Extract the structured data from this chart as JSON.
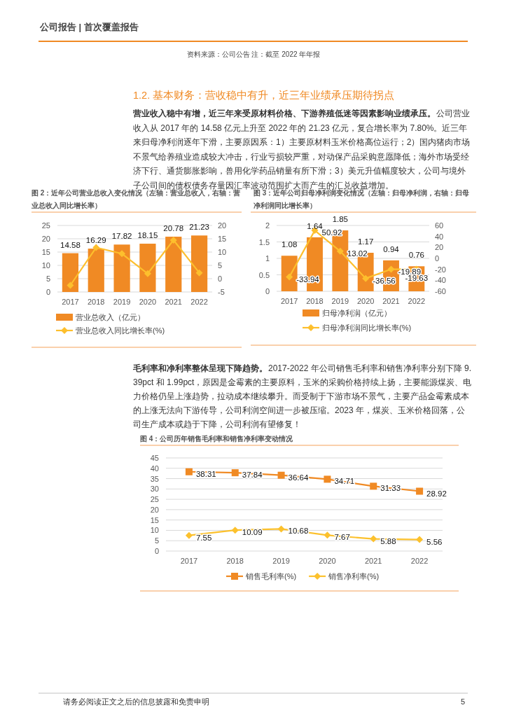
{
  "chart_data": [
    {
      "type": "bar",
      "title": "图 2：近年公司营业总收入变化情况（左轴：营业总收入，右轴：营业总收入同比增长率）",
      "categories": [
        "2017",
        "2018",
        "2019",
        "2020",
        "2021",
        "2022"
      ],
      "series": [
        {
          "name": "营业总收入（亿元）",
          "color": "#f08a24",
          "values": [
            14.58,
            16.29,
            17.82,
            18.15,
            20.78,
            21.23
          ],
          "value_labels": [
            "14.58",
            "16.29",
            "17.82",
            "18.15",
            "20.78",
            "21.23"
          ]
        },
        {
          "name": "营业总收入同比增长率(%)",
          "type": "line",
          "axis": "y2",
          "color": "#fdbf2d",
          "marker": "diamond",
          "values": [
            -2.5,
            11.7,
            9.4,
            1.9,
            14.5,
            2.2
          ]
        }
      ],
      "ylim": [
        0,
        25
      ],
      "yticks": [
        0,
        5,
        10,
        15,
        20,
        25
      ],
      "y2lim": [
        -5,
        20
      ],
      "y2ticks": [
        -5,
        0,
        5,
        10,
        15,
        20
      ],
      "grid": "y",
      "legend": "bottom",
      "annotations": [
        "公司报告 | 首次覆盖报告",
        "资料来源：公司公告 注：截至 2022 年年报",
        "1.2. 基本财务：营收稳中有升，近三年业绩承压期待拐点",
        "营业收入稳中有增，近三年来受原材料价格、下游养殖低迷等因素影响业绩承压。",
        "公司营业收入从 2017 年的 14.58 亿元上升至 2022 年的 21.23 亿元，复合增长率为 7.80%。近三年来归母净利润逐年下滑，主要原因系：1）主要原材料玉米价格高位运行；2）国内猪肉市场不景气给养殖业造成较大冲击，行业亏损较严重，对动保产品采购意愿降低；海外市场受经济下行、通货膨胀影响，兽用化学药品销量有所下滑；3）美元升值幅度较大，公司与境外子公司间的债权债务存量因汇率波动范围扩大而产生的汇兑收益增加。"
      ]
    },
    {
      "type": "bar",
      "title": "图 3：近年公司归母净利润变化情况（左轴：归母净利润，右轴：归母净利润同比增长率）",
      "categories": [
        "2017",
        "2018",
        "2019",
        "2020",
        "2021",
        "2022"
      ],
      "series": [
        {
          "name": "归母净利润（亿元）",
          "color": "#f08a24",
          "values": [
            1.08,
            1.64,
            1.85,
            1.17,
            0.94,
            0.76
          ],
          "value_labels": [
            "1.08",
            "1.64",
            "1.85",
            "1.17",
            "0.94",
            "0.76"
          ]
        },
        {
          "name": "归母净利润同比增长率(%)",
          "type": "line",
          "axis": "y2",
          "color": "#fdbf2d",
          "marker": "diamond",
          "values": [
            -33.94,
            50.92,
            13.02,
            -36.56,
            -19.89,
            -19.63
          ],
          "value_labels": [
            "-33.94",
            "50.92",
            "13.02",
            "-36.56",
            "-19.89",
            "-19.63"
          ]
        }
      ],
      "ylim": [
        0,
        2
      ],
      "yticks": [
        0,
        0.5,
        1,
        1.5,
        2
      ],
      "y2lim": [
        -60,
        60
      ],
      "y2ticks": [
        -60,
        -40,
        -20,
        0,
        20,
        40,
        60
      ],
      "grid": "y",
      "legend": "bottom"
    },
    {
      "type": "line",
      "title": "图 4：公司历年销售毛利率和销售净利率变动情况",
      "categories": [
        "2017",
        "2018",
        "2019",
        "2020",
        "2021",
        "2022"
      ],
      "series": [
        {
          "name": "销售毛利率(%)",
          "color": "#f08a24",
          "marker": "square",
          "values": [
            38.31,
            37.84,
            36.64,
            34.71,
            31.33,
            28.92
          ],
          "value_labels": [
            "38.31",
            "37.84",
            "36.64",
            "34.71",
            "31.33",
            "28.92"
          ]
        },
        {
          "name": "销售净利率(%)",
          "color": "#fcc12d",
          "marker": "diamond",
          "values": [
            7.55,
            10.09,
            10.68,
            7.67,
            5.88,
            5.56
          ],
          "value_labels": [
            "7.55",
            "10.09",
            "10.68",
            "7.67",
            "5.88",
            "5.56"
          ]
        }
      ],
      "ylim": [
        0,
        45
      ],
      "yticks": [
        0,
        5,
        10,
        15,
        20,
        25,
        30,
        35,
        40,
        45
      ],
      "grid": "y",
      "legend": "bottom",
      "annotations": [
        "毛利率和净利率整体呈现下降趋势。",
        "2017-2022 年公司销售毛利率和销售净利率分别下降 9.39pct 和 1.99pct，原因是金霉素的主要原料，玉米的采购价格持续上扬，主要能源煤炭、电力价格仍呈上涨趋势，拉动成本继续攀升。而受制于下游市场不景气，主要产品金霉素成本的上涨无法向下游传导，公司利润空间进一步被压缩。2023 年，煤炭、玉米价格回落，公司生产成本或趋于下降，公司利润有望修复！",
        "请务必阅读正文之后的信息披露和免责申明",
        "5"
      ]
    }
  ]
}
